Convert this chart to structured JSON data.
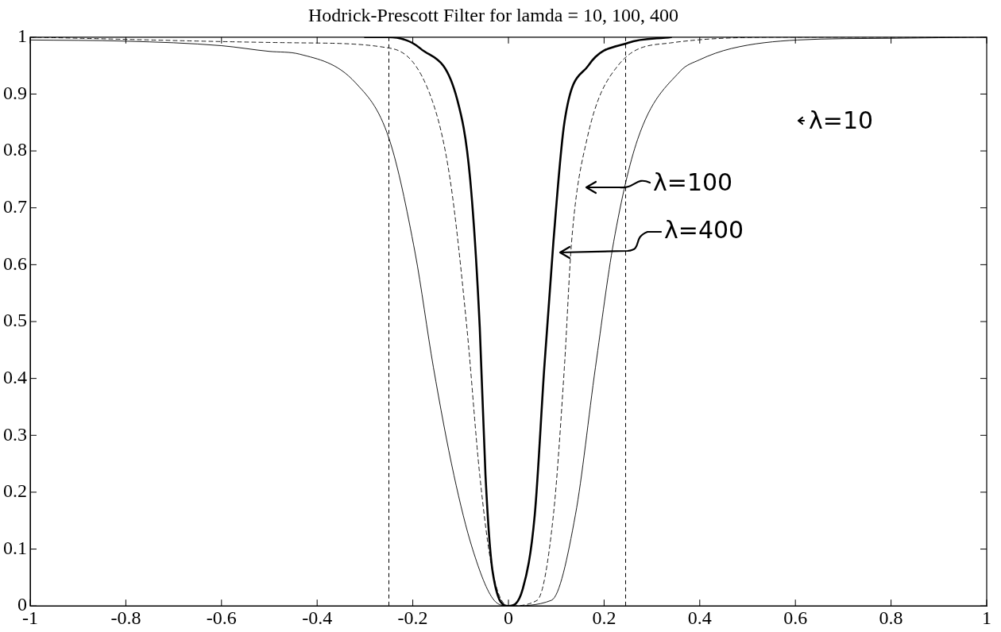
{
  "chart_data": {
    "type": "line",
    "title": "Hodrick-Prescott Filter for lamda = 10, 100, 400",
    "xlim": [
      -1,
      1
    ],
    "xticks": [
      -1,
      -0.8,
      -0.6,
      -0.4,
      -0.2,
      0,
      0.2,
      0.4,
      0.6,
      0.8,
      1
    ],
    "ylim": [
      0,
      1
    ],
    "yticks": [
      0,
      0.1,
      0.2,
      0.3,
      0.4,
      0.5,
      0.6,
      0.7,
      0.8,
      0.9,
      1
    ],
    "grid": false,
    "legend": false,
    "marker": "none",
    "series": [
      {
        "color": "#000000",
        "line_style": "solid",
        "x": [
          -1,
          -0.8,
          -0.6,
          -0.5,
          -0.436,
          -0.32,
          -0.249,
          -0.195,
          -0.157,
          -0.114,
          -0.075,
          -0.03,
          0,
          0.09,
          0.14,
          0.182,
          0.22,
          0.27,
          0.359,
          0.399,
          0.466,
          0.604,
          0.8,
          1
        ],
        "values": [
          0.995,
          0.993,
          0.985,
          0.975,
          0.97,
          0.92,
          0.82,
          0.62,
          0.42,
          0.23,
          0.1,
          0.01,
          0,
          0.01,
          0.16,
          0.42,
          0.64,
          0.82,
          0.94,
          0.96,
          0.98,
          0.995,
          0.998,
          1
        ]
      },
      {
        "color": "#000000",
        "line_style": "dashed",
        "x": [
          -1,
          -0.436,
          -0.244,
          -0.16,
          -0.122,
          -0.087,
          -0.06,
          -0.033,
          0,
          0.06,
          0.094,
          0.117,
          0.132,
          0.164,
          0.229,
          0.34,
          0.6,
          1
        ],
        "values": [
          1,
          0.99,
          0.98,
          0.89,
          0.75,
          0.49,
          0.23,
          0.06,
          0,
          0.01,
          0.16,
          0.42,
          0.64,
          0.82,
          0.95,
          0.99,
          1,
          1
        ]
      },
      {
        "color": "#000000",
        "line_style": "solid",
        "x": [
          -0.3,
          -0.252,
          -0.184,
          -0.107,
          -0.08,
          -0.06,
          -0.048,
          -0.033,
          0,
          0.03,
          0.055,
          0.075,
          0.094,
          0.117,
          0.167,
          0.25,
          0.34
        ],
        "values": [
          1,
          1,
          0.98,
          0.89,
          0.75,
          0.49,
          0.23,
          0.06,
          0,
          0.03,
          0.16,
          0.42,
          0.64,
          0.85,
          0.95,
          0.99,
          1
        ]
      }
    ],
    "ref_lines": [
      {
        "axis": "x",
        "value": -0.25,
        "color": "#000000",
        "line_style": "dashed"
      },
      {
        "axis": "x",
        "value": 0.245,
        "color": "#000000",
        "line_style": "dashed"
      }
    ],
    "annotations": [
      "λ=10",
      "λ=100",
      "λ=400"
    ]
  }
}
